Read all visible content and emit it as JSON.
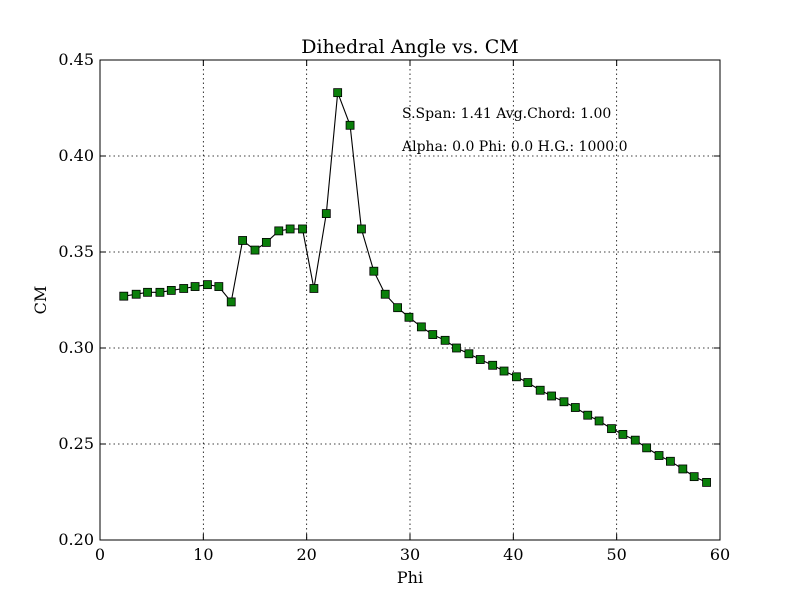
{
  "chart_data": {
    "type": "line",
    "title": "Dihedral Angle vs. CM",
    "xlabel": "Phi",
    "ylabel": "CM",
    "xlim": [
      0,
      60
    ],
    "ylim": [
      0.2,
      0.45
    ],
    "xticks": [
      "0",
      "10",
      "20",
      "30",
      "40",
      "50",
      "60"
    ],
    "yticks": [
      "0.20",
      "0.25",
      "0.30",
      "0.35",
      "0.40",
      "0.45"
    ],
    "grid": true,
    "marker": "square",
    "marker_color": "#0a7f0a",
    "line_color": "#000000",
    "annotations": [
      "S.Span: 1.41 Avg.Chord: 1.00",
      "Alpha:  0.0 Phi:  0.0 H.G.: 1000.0"
    ],
    "series": [
      {
        "x": [
          2.3,
          3.5,
          4.6,
          5.8,
          6.9,
          8.1,
          9.2,
          10.4,
          11.5,
          12.7,
          13.8,
          15.0,
          16.1,
          17.3,
          18.4,
          19.6,
          20.7,
          21.9,
          23.0,
          24.2,
          25.3,
          26.5,
          27.6,
          28.8,
          29.9,
          31.1,
          32.2,
          33.4,
          34.5,
          35.7,
          36.8,
          38.0,
          39.1,
          40.3,
          41.4,
          42.6,
          43.7,
          44.9,
          46.0,
          47.2,
          48.3,
          49.5,
          50.6,
          51.8,
          52.9,
          54.1,
          55.2,
          56.4,
          57.5,
          58.7
        ],
        "values": [
          0.327,
          0.328,
          0.329,
          0.329,
          0.33,
          0.331,
          0.332,
          0.333,
          0.332,
          0.324,
          0.356,
          0.351,
          0.355,
          0.361,
          0.362,
          0.362,
          0.331,
          0.37,
          0.433,
          0.416,
          0.362,
          0.34,
          0.328,
          0.321,
          0.316,
          0.311,
          0.307,
          0.304,
          0.3,
          0.297,
          0.294,
          0.291,
          0.288,
          0.285,
          0.282,
          0.278,
          0.275,
          0.272,
          0.269,
          0.265,
          0.262,
          0.258,
          0.255,
          0.252,
          0.248,
          0.244,
          0.241,
          0.237,
          0.233,
          0.23
        ]
      }
    ]
  }
}
